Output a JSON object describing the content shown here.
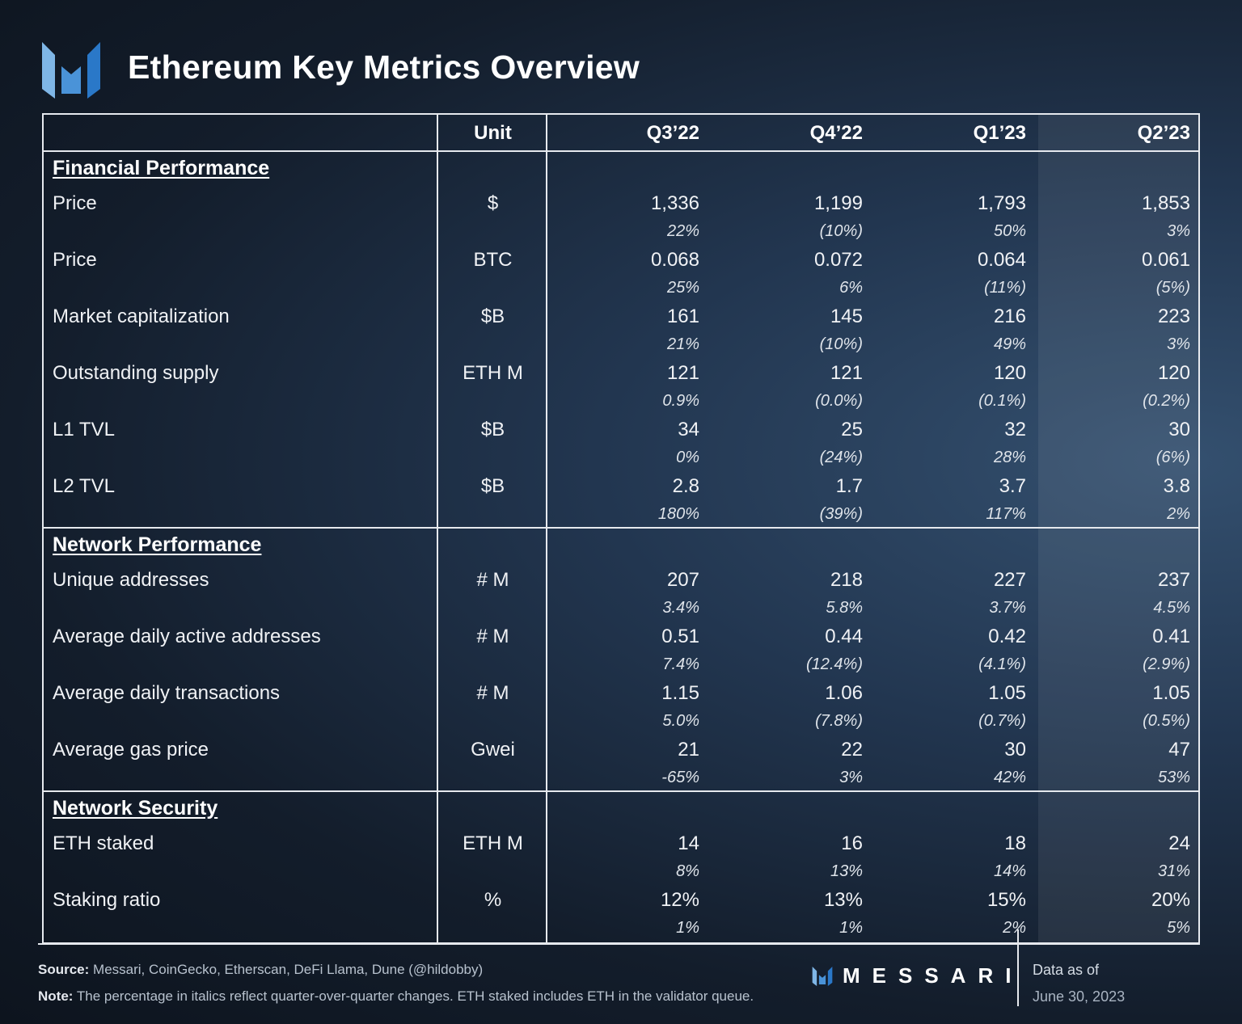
{
  "title": "Ethereum Key Metrics Overview",
  "header": {
    "metric": "",
    "unit": "Unit",
    "quarters": [
      "Q3’22",
      "Q4’22",
      "Q1’23",
      "Q2’23"
    ]
  },
  "sections": [
    {
      "name": "Financial Performance",
      "rows": [
        {
          "label": "Price",
          "unit": "$",
          "values": [
            "1,336",
            "1,199",
            "1,793",
            "1,853"
          ],
          "changes": [
            "22%",
            "(10%)",
            "50%",
            "3%"
          ]
        },
        {
          "label": "Price",
          "unit": "BTC",
          "values": [
            "0.068",
            "0.072",
            "0.064",
            "0.061"
          ],
          "changes": [
            "25%",
            "6%",
            "(11%)",
            "(5%)"
          ]
        },
        {
          "label": "Market capitalization",
          "unit": "$B",
          "values": [
            "161",
            "145",
            "216",
            "223"
          ],
          "changes": [
            "21%",
            "(10%)",
            "49%",
            "3%"
          ]
        },
        {
          "label": "Outstanding supply",
          "unit": "ETH M",
          "values": [
            "121",
            "121",
            "120",
            "120"
          ],
          "changes": [
            "0.9%",
            "(0.0%)",
            "(0.1%)",
            "(0.2%)"
          ]
        },
        {
          "label": "L1 TVL",
          "unit": "$B",
          "values": [
            "34",
            "25",
            "32",
            "30"
          ],
          "changes": [
            "0%",
            "(24%)",
            "28%",
            "(6%)"
          ]
        },
        {
          "label": "L2 TVL",
          "unit": "$B",
          "values": [
            "2.8",
            "1.7",
            "3.7",
            "3.8"
          ],
          "changes": [
            "180%",
            "(39%)",
            "117%",
            "2%"
          ]
        }
      ]
    },
    {
      "name": "Network Performance",
      "rows": [
        {
          "label": "Unique addresses",
          "unit": "# M",
          "values": [
            "207",
            "218",
            "227",
            "237"
          ],
          "changes": [
            "3.4%",
            "5.8%",
            "3.7%",
            "4.5%"
          ]
        },
        {
          "label": "Average daily active addresses",
          "unit": "# M",
          "values": [
            "0.51",
            "0.44",
            "0.42",
            "0.41"
          ],
          "changes": [
            "7.4%",
            "(12.4%)",
            "(4.1%)",
            "(2.9%)"
          ]
        },
        {
          "label": "Average daily transactions",
          "unit": "# M",
          "values": [
            "1.15",
            "1.06",
            "1.05",
            "1.05"
          ],
          "changes": [
            "5.0%",
            "(7.8%)",
            "(0.7%)",
            "(0.5%)"
          ]
        },
        {
          "label": "Average gas price",
          "unit": "Gwei",
          "values": [
            "21",
            "22",
            "30",
            "47"
          ],
          "changes": [
            "-65%",
            "3%",
            "42%",
            "53%"
          ]
        }
      ]
    },
    {
      "name": "Network Security",
      "rows": [
        {
          "label": "ETH staked",
          "unit": "ETH M",
          "values": [
            "14",
            "16",
            "18",
            "24"
          ],
          "changes": [
            "8%",
            "13%",
            "14%",
            "31%"
          ]
        },
        {
          "label": "Staking ratio",
          "unit": "%",
          "values": [
            "12%",
            "13%",
            "15%",
            "20%"
          ],
          "changes": [
            "1%",
            "1%",
            "2%",
            "5%"
          ]
        }
      ]
    }
  ],
  "footer": {
    "source_label": "Source:",
    "source": "Messari, CoinGecko, Etherscan, DeFi Llama, Dune (@hildobby)",
    "note_label": "Note:",
    "note": "The percentage in italics reflect quarter-over-quarter changes. ETH staked includes ETH in the validator queue.",
    "brand": "MESSARI",
    "asof_label": "Data as of",
    "asof_date": "June 30, 2023"
  },
  "colors": {
    "logo_light": "#7fb6e6",
    "logo_mid": "#4a93d8",
    "logo_dark": "#2a78c8"
  }
}
